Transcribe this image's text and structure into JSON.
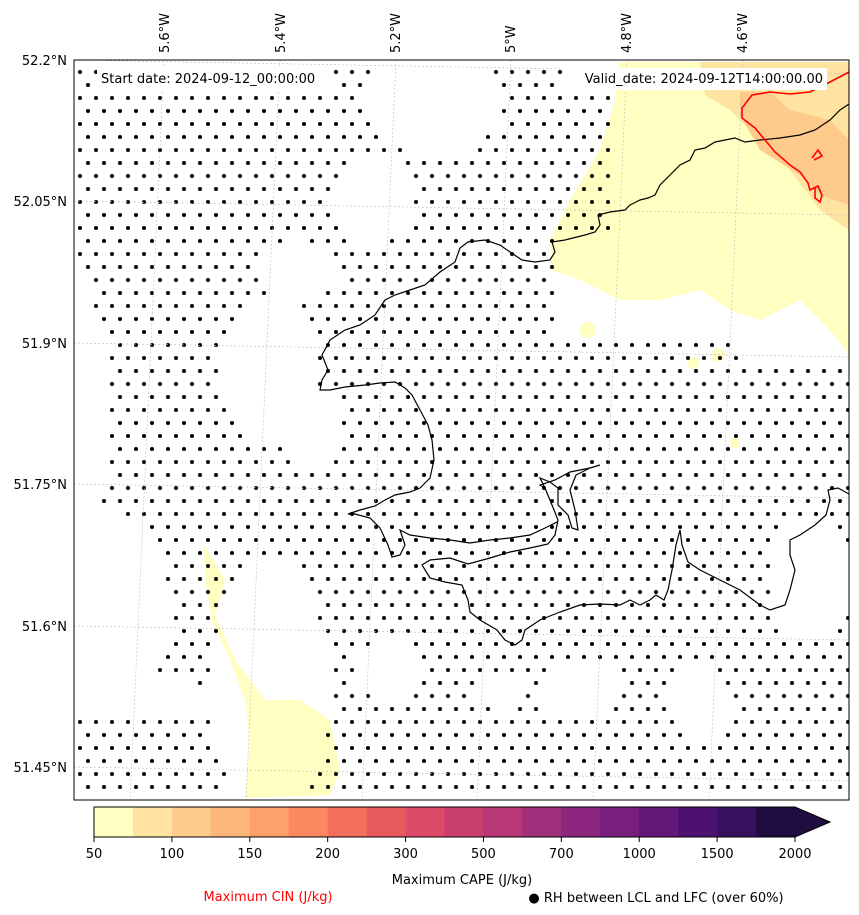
{
  "map": {
    "start_label": "Start date: 2024-09-12_00:00:00",
    "valid_label": "Valid_date: 2024-09-12T14:00:00.00",
    "lon_ticks": [
      "5.6°W",
      "5.4°W",
      "5.2°W",
      "5°W",
      "4.8°W",
      "4.6°W"
    ],
    "lat_ticks": [
      "52.2°N",
      "52.05°N",
      "51.9°N",
      "51.75°N",
      "51.6°N",
      "51.45°N"
    ]
  },
  "colorbar": {
    "label": "Maximum CAPE (J/kg)",
    "tick_labels": [
      "50",
      "100",
      "150",
      "200",
      "300",
      "500",
      "700",
      "1000",
      "1500",
      "2000"
    ],
    "colors": [
      "#ffffc2",
      "#fee4a0",
      "#fecb8c",
      "#feb77a",
      "#fea06a",
      "#fb8860",
      "#f4705a",
      "#e95a5f",
      "#dd4b6b",
      "#cb3f70",
      "#b73778",
      "#a22f7c",
      "#8c267f",
      "#781e7f",
      "#621878",
      "#4d1271",
      "#371060",
      "#200d40"
    ]
  },
  "legend": {
    "cin_label": "Maximum CIN (J/kg)",
    "cin_color": "#ff0000",
    "rh_label": "● RH between LCL and LFC (over 60%)"
  }
}
